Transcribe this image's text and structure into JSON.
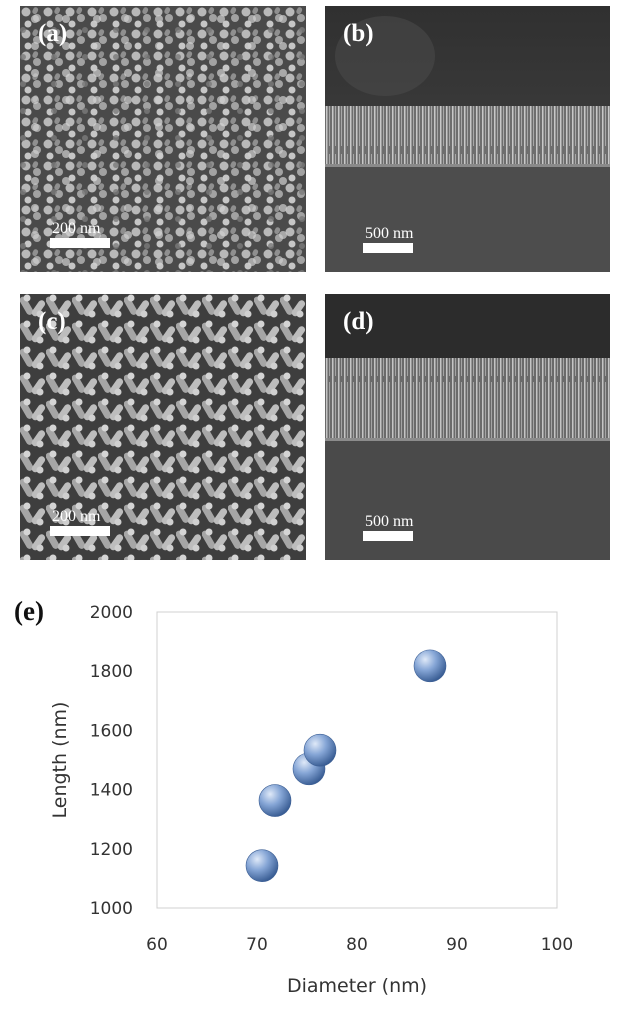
{
  "panels": [
    {
      "label": "(a)",
      "scale": "200 nm",
      "bar_fraction": 0.21
    },
    {
      "label": "(b)",
      "scale": "500 nm",
      "bar_fraction": 0.17
    },
    {
      "label": "(c)",
      "scale": "200 nm",
      "bar_fraction": 0.21
    },
    {
      "label": "(d)",
      "scale": "500 nm",
      "bar_fraction": 0.17
    }
  ],
  "chart_label": "(e)",
  "chart_data": {
    "type": "scatter",
    "xlabel": "Diameter (nm)",
    "ylabel": "Length (nm)",
    "xlim": [
      60,
      100
    ],
    "ylim": [
      1000,
      2000
    ],
    "xticks": [
      60,
      70,
      80,
      90,
      100
    ],
    "yticks": [
      1000,
      1200,
      1400,
      1600,
      1800,
      2000
    ],
    "grid": false,
    "marker_color": "#7f9fd0",
    "points": [
      {
        "x": 70.5,
        "y": 1143
      },
      {
        "x": 71.8,
        "y": 1363
      },
      {
        "x": 75.2,
        "y": 1470
      },
      {
        "x": 76.3,
        "y": 1533
      },
      {
        "x": 87.3,
        "y": 1818
      }
    ]
  }
}
